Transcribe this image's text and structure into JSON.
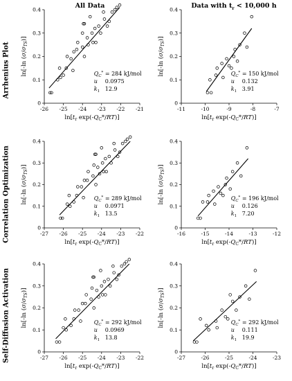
{
  "figure": {
    "col_titles": [
      "All Data",
      "Data with t",
      "r",
      " < 10,000 h"
    ],
    "row_labels": [
      "Arrhenius Plot",
      "Correlation Optimization",
      "Self-Diffusion Activation"
    ]
  },
  "chart_data": [
    {
      "type": "scatter",
      "panel": "Arrhenius Plot - All Data",
      "xlabel": "ln[tr exp(-QC*/RT)]",
      "ylabel": "ln[-ln (σ/σTS)]",
      "xlim": [
        -26,
        -21
      ],
      "ylim": [
        0,
        0.4
      ],
      "xticks": [
        -26,
        -25,
        -24,
        -23,
        -22,
        -21
      ],
      "yticks": [
        0,
        0.1,
        0.2,
        0.3,
        0.4
      ],
      "x": [
        -25.7,
        -25.62,
        -25.3,
        -25.2,
        -25.15,
        -25.0,
        -24.85,
        -24.8,
        -24.6,
        -24.5,
        -24.45,
        -24.3,
        -24.25,
        -24.0,
        -24.0,
        -23.95,
        -23.9,
        -23.9,
        -23.75,
        -23.7,
        -23.6,
        -23.5,
        -23.45,
        -23.35,
        -23.3,
        -23.15,
        -23.05,
        -22.9,
        -22.85,
        -22.7,
        -22.6,
        -22.45,
        -22.3,
        -22.2,
        -22.05
      ],
      "y": [
        0.045,
        0.045,
        0.1,
        0.15,
        0.11,
        0.12,
        0.15,
        0.2,
        0.19,
        0.14,
        0.22,
        0.23,
        0.26,
        0.24,
        0.3,
        0.34,
        0.34,
        0.2,
        0.28,
        0.25,
        0.37,
        0.3,
        0.26,
        0.32,
        0.26,
        0.33,
        0.3,
        0.39,
        0.36,
        0.33,
        0.35,
        0.39,
        0.4,
        0.41,
        0.42
      ],
      "fit": {
        "x": [
          -25.75,
          -22.05
        ],
        "y": [
          0.065,
          0.41
        ]
      },
      "annotation": {
        "Q": "= 284 kJ/mol",
        "u": "0.0975",
        "k1": "12.9"
      }
    },
    {
      "type": "scatter",
      "panel": "Arrhenius Plot - Data with tr < 10,000 h",
      "xlabel": "ln[tr exp(-QC*/RT)]",
      "ylabel": "ln[-ln (σ/σTS)]",
      "xlim": [
        -11,
        -7
      ],
      "ylim": [
        0,
        0.4
      ],
      "xticks": [
        -11,
        -10,
        -9,
        -8,
        -7
      ],
      "yticks": [
        0,
        0.1,
        0.2,
        0.3,
        0.4
      ],
      "x": [
        -9.9,
        -9.8,
        -9.75,
        -9.55,
        -9.5,
        -9.3,
        -9.25,
        -9.1,
        -9.0,
        -8.9,
        -8.8,
        -8.75,
        -8.65,
        -8.55,
        -8.35,
        -8.25,
        -8.05
      ],
      "y": [
        0.045,
        0.1,
        0.045,
        0.12,
        0.15,
        0.17,
        0.11,
        0.19,
        0.16,
        0.15,
        0.2,
        0.23,
        0.18,
        0.25,
        0.3,
        0.24,
        0.37
      ],
      "fit": {
        "x": [
          -9.95,
          -8.05
        ],
        "y": [
          0.05,
          0.32
        ]
      },
      "annotation": {
        "Q": "= 150 kJ/mol",
        "u": "0.132",
        "k1": "3.91"
      }
    },
    {
      "type": "scatter",
      "panel": "Correlation Optimization - All Data",
      "xlabel": "ln[tr exp(-QC*/RT)]",
      "ylabel": "ln[-ln (σ/σTS)]",
      "xlim": [
        -27,
        -22
      ],
      "ylim": [
        0,
        0.4
      ],
      "xticks": [
        -27,
        -26,
        -25,
        -24,
        -23,
        -22
      ],
      "yticks": [
        0,
        0.1,
        0.2,
        0.3,
        0.4
      ],
      "x": [
        -26.15,
        -26.05,
        -25.8,
        -25.7,
        -25.65,
        -25.45,
        -25.3,
        -25.25,
        -25.05,
        -24.95,
        -24.9,
        -24.75,
        -24.7,
        -24.45,
        -24.4,
        -24.35,
        -24.3,
        -24.3,
        -24.2,
        -24.1,
        -24.0,
        -23.95,
        -23.9,
        -23.8,
        -23.75,
        -23.6,
        -23.5,
        -23.35,
        -23.3,
        -23.15,
        -23.05,
        -22.9,
        -22.75,
        -22.65,
        -22.5
      ],
      "y": [
        0.045,
        0.045,
        0.11,
        0.15,
        0.1,
        0.12,
        0.15,
        0.19,
        0.19,
        0.14,
        0.22,
        0.22,
        0.26,
        0.24,
        0.29,
        0.34,
        0.34,
        0.2,
        0.28,
        0.25,
        0.37,
        0.3,
        0.26,
        0.32,
        0.26,
        0.33,
        0.3,
        0.39,
        0.36,
        0.33,
        0.35,
        0.39,
        0.4,
        0.41,
        0.42
      ],
      "fit": {
        "x": [
          -26.2,
          -22.5
        ],
        "y": [
          0.06,
          0.4
        ]
      },
      "annotation": {
        "Q": "= 289 kJ/mol",
        "u": "0.0971",
        "k1": "13.5"
      }
    },
    {
      "type": "scatter",
      "panel": "Correlation Optimization - Data with tr < 10,000 h",
      "xlabel": "ln[tr exp(-QC*/RT)]",
      "ylabel": "ln[-ln (σ/σTS)]",
      "xlim": [
        -16,
        -12
      ],
      "ylim": [
        0,
        0.4
      ],
      "xticks": [
        -16,
        -15,
        -14,
        -13,
        -12
      ],
      "yticks": [
        0,
        0.1,
        0.2,
        0.3,
        0.4
      ],
      "x": [
        -15.3,
        -15.2,
        -15.1,
        -14.9,
        -14.85,
        -14.65,
        -14.6,
        -14.45,
        -14.35,
        -14.25,
        -14.15,
        -14.1,
        -13.95,
        -13.85,
        -13.65,
        -13.5,
        -13.25
      ],
      "y": [
        0.045,
        0.045,
        0.12,
        0.12,
        0.15,
        0.17,
        0.11,
        0.19,
        0.16,
        0.15,
        0.2,
        0.23,
        0.18,
        0.26,
        0.3,
        0.24,
        0.37
      ],
      "fit": {
        "x": [
          -15.3,
          -13.2
        ],
        "y": [
          0.055,
          0.32
        ]
      },
      "annotation": {
        "Q": "= 196 kJ/mol",
        "u": "0.126",
        "k1": "7.20"
      }
    },
    {
      "type": "scatter",
      "panel": "Self-Diffusion Activation - All Data",
      "xlabel": "ln[tr exp(-QC*/RT)]",
      "ylabel": "ln[-ln (σ/σTS)]",
      "xlim": [
        -27,
        -22
      ],
      "ylim": [
        0,
        0.4
      ],
      "xticks": [
        -27,
        -26,
        -25,
        -24,
        -23,
        -22
      ],
      "yticks": [
        0,
        0.1,
        0.2,
        0.3,
        0.4
      ],
      "x": [
        -26.35,
        -26.2,
        -26.0,
        -25.9,
        -25.85,
        -25.6,
        -25.45,
        -25.4,
        -25.2,
        -25.1,
        -25.0,
        -24.85,
        -24.8,
        -24.55,
        -24.5,
        -24.45,
        -24.4,
        -24.4,
        -24.25,
        -24.15,
        -24.05,
        -24.0,
        -23.95,
        -23.85,
        -23.8,
        -23.65,
        -23.55,
        -23.4,
        -23.35,
        -23.2,
        -23.1,
        -22.95,
        -22.8,
        -22.7,
        -22.55
      ],
      "y": [
        0.045,
        0.045,
        0.11,
        0.15,
        0.1,
        0.12,
        0.15,
        0.19,
        0.19,
        0.14,
        0.22,
        0.22,
        0.26,
        0.24,
        0.29,
        0.34,
        0.34,
        0.2,
        0.28,
        0.25,
        0.37,
        0.3,
        0.26,
        0.32,
        0.26,
        0.33,
        0.3,
        0.39,
        0.36,
        0.33,
        0.35,
        0.39,
        0.4,
        0.41,
        0.42
      ],
      "fit": {
        "x": [
          -26.4,
          -22.55
        ],
        "y": [
          0.06,
          0.4
        ]
      },
      "annotation": {
        "Q": "= 292 kJ/mol",
        "u": "0.0969",
        "k1": "13.8"
      }
    },
    {
      "type": "scatter",
      "panel": "Self-Diffusion Activation - Data with tr < 10,000 h",
      "xlabel": "ln[tr exp(-QC*/RT)]",
      "ylabel": "ln[-ln (σ/σTS)]",
      "xlim": [
        -27,
        -23
      ],
      "ylim": [
        0,
        0.4
      ],
      "xticks": [
        -27,
        -26,
        -25,
        -24,
        -23
      ],
      "yticks": [
        0,
        0.1,
        0.2,
        0.3,
        0.4
      ],
      "x": [
        -26.45,
        -26.35,
        -26.2,
        -25.95,
        -25.85,
        -25.55,
        -25.5,
        -25.3,
        -25.15,
        -25.05,
        -24.95,
        -24.85,
        -24.7,
        -24.55,
        -24.3,
        -24.15,
        -23.9
      ],
      "y": [
        0.045,
        0.045,
        0.15,
        0.12,
        0.1,
        0.14,
        0.11,
        0.19,
        0.16,
        0.15,
        0.26,
        0.23,
        0.19,
        0.25,
        0.3,
        0.24,
        0.37
      ],
      "fit": {
        "x": [
          -26.5,
          -23.85
        ],
        "y": [
          0.05,
          0.32
        ]
      },
      "annotation": {
        "Q": "= 292 kJ/mol",
        "u": "0.111",
        "k1": "19.9"
      }
    }
  ]
}
